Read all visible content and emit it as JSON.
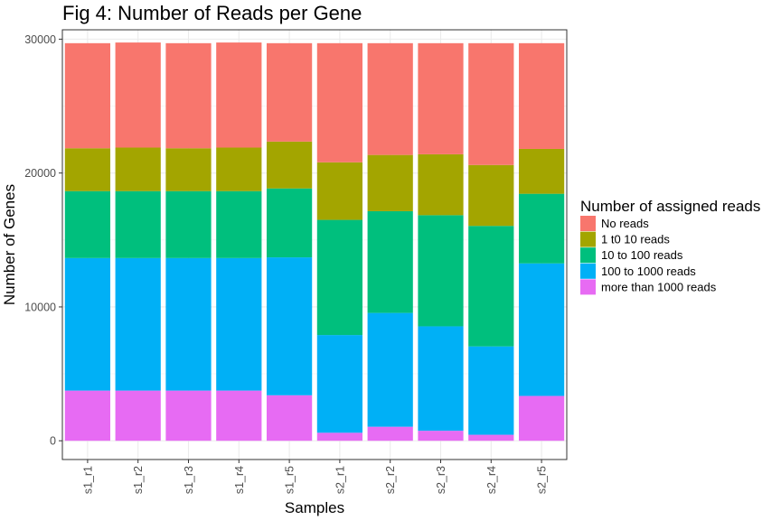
{
  "chart_data": {
    "type": "bar",
    "stacked": true,
    "title": "Fig 4: Number of Reads per Gene",
    "xlabel": "Samples",
    "ylabel": "Number of Genes",
    "ylim": [
      -1400,
      30700
    ],
    "yticks": [
      0,
      10000,
      20000,
      30000
    ],
    "ytick_labels": [
      "0",
      "10000",
      "20000",
      "30000"
    ],
    "grid": true,
    "legend_position": "right",
    "legend_title": "Number of assigned reads",
    "categories": [
      "s1_r1",
      "s1_r2",
      "s1_r3",
      "s1_r4",
      "s1_r5",
      "s2_r1",
      "s2_r2",
      "s2_r3",
      "s2_r4",
      "s2_r5"
    ],
    "series": [
      {
        "name": "No reads",
        "color": "#F8766D",
        "values": [
          7850,
          7850,
          7850,
          7850,
          7350,
          8900,
          8350,
          8300,
          9100,
          7900
        ]
      },
      {
        "name": "1 t0 10 reads",
        "color": "#A3A500",
        "values": [
          3200,
          3250,
          3200,
          3250,
          3500,
          4300,
          4200,
          4550,
          4550,
          3350
        ]
      },
      {
        "name": "10 to 100 reads",
        "color": "#00BF7D",
        "values": [
          5000,
          5000,
          5000,
          5000,
          5150,
          8600,
          7600,
          8300,
          9000,
          5200
        ]
      },
      {
        "name": "100 to 1000 reads",
        "color": "#00B0F6",
        "values": [
          9900,
          9900,
          9900,
          9900,
          10300,
          7300,
          8500,
          7800,
          6600,
          9900
        ]
      },
      {
        "name": "more than 1000 reads",
        "color": "#E76BF3",
        "values": [
          3750,
          3750,
          3750,
          3750,
          3400,
          600,
          1050,
          750,
          450,
          3350
        ]
      }
    ],
    "stack_order": [
      "more than 1000 reads",
      "100 to 1000 reads",
      "10 to 100 reads",
      "1 t0 10 reads",
      "No reads"
    ]
  }
}
